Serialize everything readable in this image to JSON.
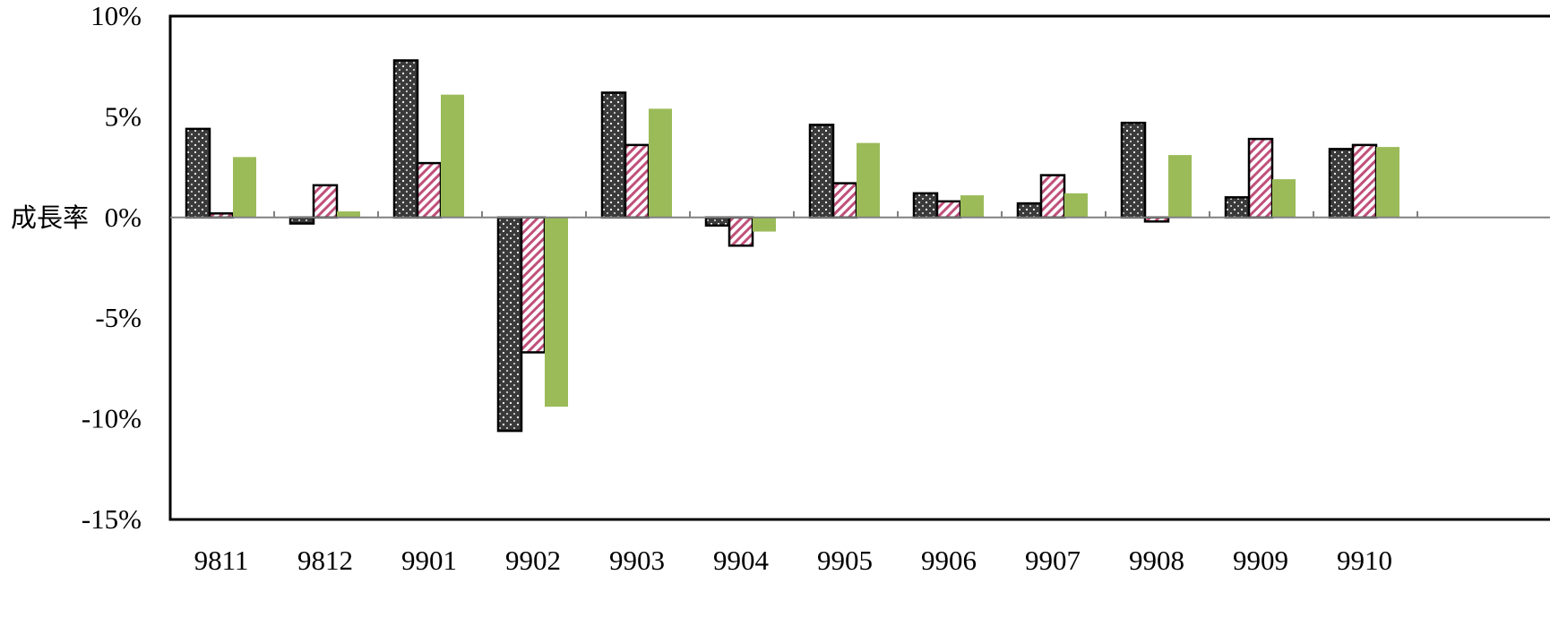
{
  "chart_data": {
    "type": "bar",
    "ylabel": "成長率",
    "ylim": [
      -15,
      10
    ],
    "yticks": [
      "10%",
      "5%",
      "0%",
      "-5%",
      "-10%",
      "-15%"
    ],
    "ytick_values": [
      10,
      5,
      0,
      -5,
      -10,
      -15
    ],
    "categories": [
      "9811",
      "9812",
      "9901",
      "9902",
      "9903",
      "9904",
      "9905",
      "9906",
      "9907",
      "9908",
      "9909",
      "9910"
    ],
    "grid": false,
    "series": [
      {
        "pattern": "dots-dark",
        "fill_color": "#3a3a3a",
        "values": [
          4.4,
          -0.3,
          7.8,
          -10.6,
          6.2,
          -0.4,
          4.6,
          1.2,
          0.7,
          4.7,
          1.0,
          3.4
        ]
      },
      {
        "pattern": "diagonal-hatch-pink",
        "fill_color": "#c0507a",
        "values": [
          0.2,
          1.6,
          2.7,
          -6.7,
          3.6,
          -1.4,
          1.7,
          0.8,
          2.1,
          -0.2,
          3.9,
          3.6
        ]
      },
      {
        "pattern": "solid-green",
        "fill_color": "#9bbb59",
        "values": [
          3.0,
          0.3,
          6.1,
          -9.4,
          5.4,
          -0.7,
          3.7,
          1.1,
          1.2,
          3.1,
          1.9,
          3.5
        ]
      }
    ]
  }
}
